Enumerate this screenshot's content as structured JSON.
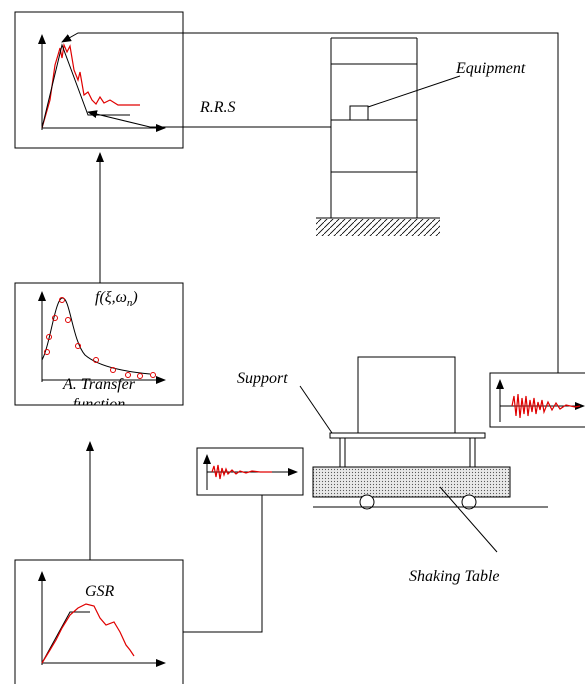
{
  "labels": {
    "equipment": "Equipment",
    "rrs": "R.R.S",
    "function_label": {
      "main": "f(ξ,ω",
      "sub": "n",
      "close": ")"
    },
    "support": "Support",
    "transfer": [
      "A. Transfer",
      "function"
    ],
    "shaking_table": "Shaking Table",
    "gsr": "GSR"
  }
}
